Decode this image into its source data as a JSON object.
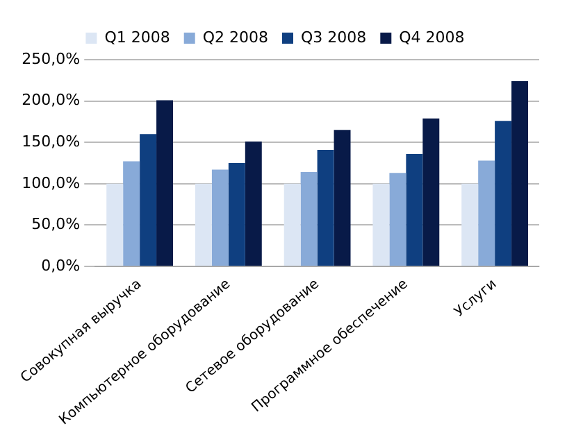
{
  "chart_data": {
    "type": "bar",
    "categories": [
      "Совокупная выручка",
      "Компьютерное оборудование",
      "Сетевое оборудование",
      "Программное обеспечение",
      "Услуги"
    ],
    "series": [
      {
        "name": "Q1 2008",
        "color": "#dce6f4",
        "values": [
          100,
          100,
          100,
          100,
          100
        ]
      },
      {
        "name": "Q2 2008",
        "color": "#88aad8",
        "values": [
          127,
          117,
          114,
          113,
          128
        ]
      },
      {
        "name": "Q3 2008",
        "color": "#0f3f80",
        "values": [
          160,
          125,
          141,
          136,
          176
        ]
      },
      {
        "name": "Q4 2008",
        "color": "#081a48",
        "values": [
          201,
          151,
          165,
          179,
          224
        ]
      }
    ],
    "ylim": [
      0,
      250
    ],
    "yticks": [
      {
        "value": 0,
        "label": "0,0%"
      },
      {
        "value": 50,
        "label": "50,0%"
      },
      {
        "value": 100,
        "label": "100,0%"
      },
      {
        "value": 150,
        "label": "150,0%"
      },
      {
        "value": 200,
        "label": "200,0%"
      },
      {
        "value": 250,
        "label": "250,0%"
      }
    ],
    "grid": "y",
    "legend": "top"
  }
}
